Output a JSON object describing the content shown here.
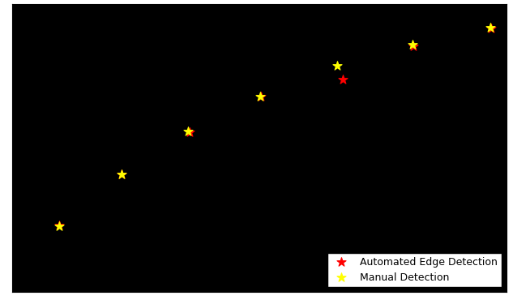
{
  "chart_data": {
    "type": "scatter",
    "xlim": [
      0,
      610
    ],
    "ylim": [
      355,
      0
    ],
    "xticks": [],
    "yticks": [],
    "tick_labels": false,
    "grid": false,
    "legend": "lower right",
    "series": [
      {
        "name": "Automated Edge Detection",
        "color": "#ff0000",
        "marker": "star",
        "x": [
          58,
          135,
          219,
          307,
          408,
          495,
          591
        ],
        "values": [
          273,
          210,
          158,
          114,
          93,
          52,
          30
        ]
      },
      {
        "name": "Manual Detection",
        "color": "#ffff00",
        "marker": "star",
        "x": [
          58,
          135,
          217,
          306,
          401,
          494,
          590
        ],
        "values": [
          274,
          210,
          157,
          114,
          76,
          50,
          29
        ]
      }
    ]
  }
}
